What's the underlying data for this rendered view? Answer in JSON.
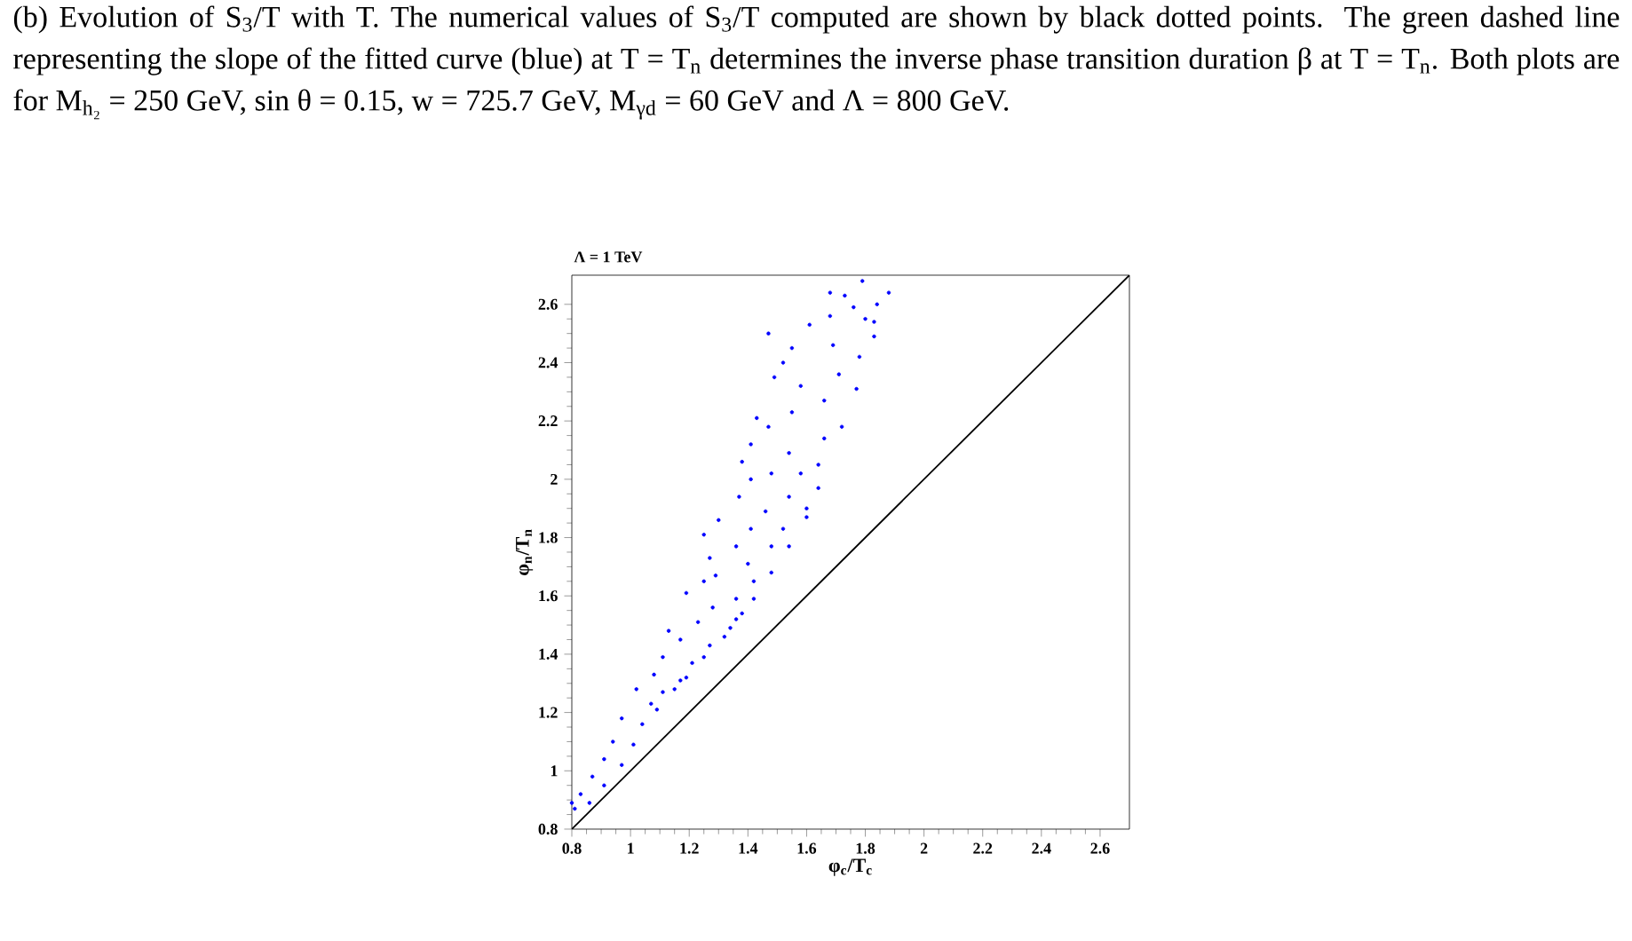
{
  "chart_data": {
    "type": "scatter",
    "title": "Λ = 1 TeV",
    "xlabel": "φ$_{c}$/T$_{c}$",
    "ylabel": "φ$_{n}$/T$_{n}$",
    "annotations": [
      "(b) Evolution of S$_{3}$/T with T. The numerical values of S$_{3}$/T computed are shown by black dotted points. The green dashed line representing the slope of the fitted curve (blue) at T = T$_{n}$ determines the inverse phase transition duration β at T = T$_{n}$. Both plots are for M$_{h₂}$ = 250 GeV, sin θ = 0.15, w = 725.7 GeV, M$_{γd}$ = 60 GeV and Λ = 800 GeV."
    ],
    "xlim": [
      0.8,
      2.7
    ],
    "ylim": [
      0.8,
      2.7
    ],
    "xticks": [
      0.8,
      1,
      1.2,
      1.4,
      1.6,
      1.8,
      2,
      2.2,
      2.4,
      2.6
    ],
    "yticks": [
      0.8,
      1,
      1.2,
      1.4,
      1.6,
      1.8,
      2,
      2.2,
      2.4,
      2.6
    ],
    "grid": false,
    "series": [
      {
        "marker": "circle",
        "color": "#0000ff",
        "x": [
          1.79,
          1.88,
          1.68,
          1.73,
          1.84,
          1.76,
          1.8,
          1.83,
          1.68,
          1.61,
          1.47,
          1.83,
          1.55,
          1.69,
          1.78,
          1.52,
          1.49,
          1.71,
          1.77,
          1.58,
          1.66,
          1.55,
          1.72,
          1.43,
          1.47,
          1.41,
          1.54,
          1.66,
          1.38,
          1.64,
          1.48,
          1.58,
          1.41,
          1.64,
          1.37,
          1.54,
          1.46,
          1.6,
          1.3,
          1.41,
          1.52,
          1.25,
          1.36,
          1.48,
          1.27,
          1.4,
          1.29,
          1.42,
          1.25,
          1.19,
          1.36,
          1.28,
          1.38,
          1.13,
          1.23,
          1.34,
          1.17,
          1.27,
          1.11,
          1.21,
          1.08,
          1.17,
          1.02,
          1.11,
          1.07,
          0.97,
          1.04,
          0.94,
          1.01,
          0.91,
          0.97,
          0.87,
          0.91,
          0.83,
          0.86,
          0.81,
          0.8,
          1.09,
          1.15,
          1.19,
          1.25,
          1.32,
          1.36,
          1.42,
          1.48,
          1.54,
          1.6
        ],
        "values": [
          2.68,
          2.64,
          2.64,
          2.63,
          2.6,
          2.59,
          2.55,
          2.54,
          2.56,
          2.53,
          2.5,
          2.49,
          2.45,
          2.46,
          2.42,
          2.4,
          2.35,
          2.36,
          2.31,
          2.32,
          2.27,
          2.23,
          2.18,
          2.21,
          2.18,
          2.12,
          2.09,
          2.14,
          2.06,
          2.05,
          2.02,
          2.02,
          2.0,
          1.97,
          1.94,
          1.94,
          1.89,
          1.9,
          1.86,
          1.83,
          1.83,
          1.81,
          1.77,
          1.77,
          1.73,
          1.71,
          1.67,
          1.65,
          1.65,
          1.61,
          1.59,
          1.56,
          1.54,
          1.48,
          1.51,
          1.49,
          1.45,
          1.43,
          1.39,
          1.37,
          1.33,
          1.31,
          1.28,
          1.27,
          1.23,
          1.18,
          1.16,
          1.1,
          1.09,
          1.04,
          1.02,
          0.98,
          0.95,
          0.92,
          0.89,
          0.87,
          0.89,
          1.21,
          1.28,
          1.32,
          1.39,
          1.46,
          1.52,
          1.59,
          1.68,
          1.77,
          1.87
        ]
      },
      {
        "type": "line",
        "marker": "none",
        "color": "#000000",
        "x": [
          0.8,
          2.7
        ],
        "values": [
          0.8,
          2.7
        ]
      }
    ]
  }
}
